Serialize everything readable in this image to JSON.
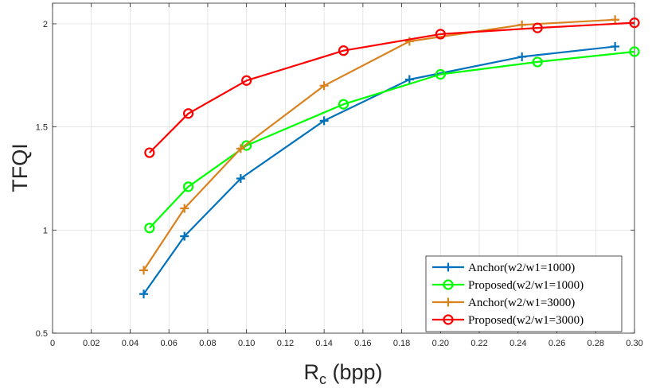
{
  "chart_data": {
    "type": "line",
    "xlabel": "R",
    "xlabel_subscript": "c",
    "xlabel_unit": " (bpp)",
    "ylabel": "TFQI",
    "xlim": [
      0,
      0.3
    ],
    "ylim": [
      0.5,
      2.1
    ],
    "x_ticks": [
      0,
      0.02,
      0.04,
      0.06,
      0.08,
      0.1,
      0.12,
      0.14,
      0.16,
      0.18,
      0.2,
      0.22,
      0.24,
      0.26,
      0.28,
      0.3
    ],
    "x_tick_labels": [
      "0",
      "0.02",
      "0.04",
      "0.06",
      "0.08",
      "0.10",
      "0.12",
      "0.14",
      "0.16",
      "0.18",
      "0.20",
      "0.22",
      "0.24",
      "0.26",
      "0.28",
      "0.30"
    ],
    "y_ticks": [
      0.5,
      1,
      1.5,
      2
    ],
    "y_tick_labels": [
      "0.5",
      "1",
      "1.5",
      "2"
    ],
    "grid": true,
    "legend_position": "bottom-right",
    "series": [
      {
        "name": "Anchor(w2/w1=1000)",
        "color": "#0072BD",
        "marker": "plus",
        "x": [
          0.047,
          0.068,
          0.097,
          0.14,
          0.184,
          0.242,
          0.29
        ],
        "y": [
          0.69,
          0.97,
          1.25,
          1.53,
          1.73,
          1.84,
          1.89
        ]
      },
      {
        "name": "Proposed(w2/w1=1000)",
        "color": "#00FF00",
        "marker": "circle",
        "x": [
          0.05,
          0.07,
          0.1,
          0.15,
          0.2,
          0.25,
          0.3
        ],
        "y": [
          1.01,
          1.21,
          1.41,
          1.61,
          1.755,
          1.815,
          1.865
        ]
      },
      {
        "name": "Anchor(w2/w1=3000)",
        "color": "#D9821E",
        "marker": "plus",
        "x": [
          0.047,
          0.068,
          0.097,
          0.14,
          0.184,
          0.242,
          0.29
        ],
        "y": [
          0.805,
          1.105,
          1.395,
          1.7,
          1.915,
          1.995,
          2.02
        ]
      },
      {
        "name": "Proposed(w2/w1=3000)",
        "color": "#FF0000",
        "marker": "circle",
        "x": [
          0.05,
          0.07,
          0.1,
          0.15,
          0.2,
          0.25,
          0.3
        ],
        "y": [
          1.375,
          1.565,
          1.725,
          1.87,
          1.95,
          1.98,
          2.005
        ]
      }
    ]
  }
}
